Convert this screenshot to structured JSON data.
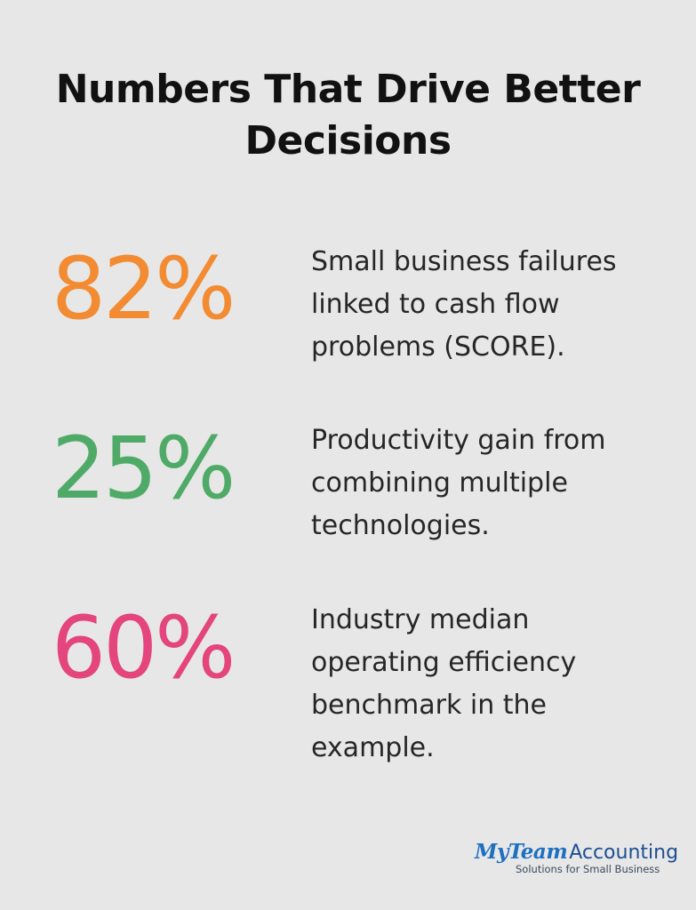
{
  "title": "Numbers That Drive Better Decisions",
  "stats": [
    {
      "value": "82%",
      "color": "#f28b32",
      "lines": [
        "Small business failures",
        "linked to cash flow",
        "problems (SCORE)."
      ]
    },
    {
      "value": "25%",
      "color": "#4faa68",
      "lines": [
        "Productivity gain from",
        "combining multiple",
        "technologies."
      ]
    },
    {
      "value": "60%",
      "color": "#e3457c",
      "lines": [
        "Industry median",
        "operating efficiency",
        "benchmark in the",
        "example."
      ]
    }
  ],
  "logo": {
    "brand_my": "MyTeam",
    "brand_accounting": "Accounting",
    "tagline": "Solutions for Small Business",
    "brand_color": "#1f6fc1"
  }
}
